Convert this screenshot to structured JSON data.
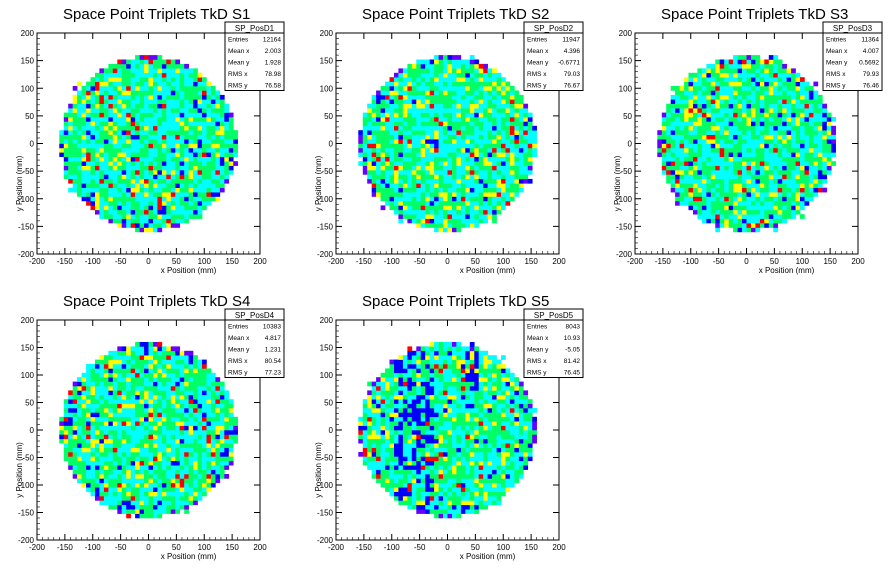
{
  "colors": {
    "palette": [
      "#6600ff",
      "#0000ff",
      "#00ffff",
      "#00ff66",
      "#ffff00",
      "#ff0000"
    ],
    "background": "#ffffff",
    "frame": "#000000"
  },
  "chart_data": [
    {
      "type": "heatmap",
      "title": "Space Point Triplets TkD S1",
      "xlabel": "x Position (mm)",
      "ylabel": "y Position (mm)",
      "xlim": [
        -200,
        200
      ],
      "ylim": [
        -200,
        200
      ],
      "xticks": [
        "-200",
        "-150",
        "-100",
        "-50",
        "0",
        "50",
        "100",
        "150",
        "200"
      ],
      "yticks": [
        "-200",
        "-150",
        "-100",
        "-50",
        "0",
        "50",
        "100",
        "150",
        "200"
      ],
      "disk_radius": 160,
      "stats": {
        "name": "SP_PosD1",
        "rows": [
          [
            "Entries",
            "12164"
          ],
          [
            "Mean x",
            "2.003"
          ],
          [
            "Mean y",
            "1.928"
          ],
          [
            "RMS x",
            "78.98"
          ],
          [
            "RMS y",
            "76.58"
          ]
        ]
      }
    },
    {
      "type": "heatmap",
      "title": "Space Point Triplets TkD S2",
      "xlabel": "x Position (mm)",
      "ylabel": "y Position (mm)",
      "xlim": [
        -200,
        200
      ],
      "ylim": [
        -200,
        200
      ],
      "xticks": [
        "-200",
        "-150",
        "-100",
        "-50",
        "0",
        "50",
        "100",
        "150",
        "200"
      ],
      "yticks": [
        "-200",
        "-150",
        "-100",
        "-50",
        "0",
        "50",
        "100",
        "150",
        "200"
      ],
      "disk_radius": 160,
      "stats": {
        "name": "SP_PosD2",
        "rows": [
          [
            "Entries",
            "11947"
          ],
          [
            "Mean x",
            "4.396"
          ],
          [
            "Mean y",
            "-0.6771"
          ],
          [
            "RMS x",
            "79.03"
          ],
          [
            "RMS y",
            "76.67"
          ]
        ]
      }
    },
    {
      "type": "heatmap",
      "title": "Space Point Triplets TkD S3",
      "xlabel": "x Position (mm)",
      "ylabel": "y Position (mm)",
      "xlim": [
        -200,
        200
      ],
      "ylim": [
        -200,
        200
      ],
      "xticks": [
        "-200",
        "-150",
        "-100",
        "-50",
        "0",
        "50",
        "100",
        "150",
        "200"
      ],
      "yticks": [
        "-200",
        "-150",
        "-100",
        "-50",
        "0",
        "50",
        "100",
        "150",
        "200"
      ],
      "disk_radius": 160,
      "stats": {
        "name": "SP_PosD3",
        "rows": [
          [
            "Entries",
            "11364"
          ],
          [
            "Mean x",
            "4.007"
          ],
          [
            "Mean y",
            "0.5692"
          ],
          [
            "RMS x",
            "79.93"
          ],
          [
            "RMS y",
            "76.46"
          ]
        ]
      }
    },
    {
      "type": "heatmap",
      "title": "Space Point Triplets TkD S4",
      "xlabel": "x Position (mm)",
      "ylabel": "y Position (mm)",
      "xlim": [
        -200,
        200
      ],
      "ylim": [
        -200,
        200
      ],
      "xticks": [
        "-200",
        "-150",
        "-100",
        "-50",
        "0",
        "50",
        "100",
        "150",
        "200"
      ],
      "yticks": [
        "-200",
        "-150",
        "-100",
        "-50",
        "0",
        "50",
        "100",
        "150",
        "200"
      ],
      "disk_radius": 160,
      "stats": {
        "name": "SP_PosD4",
        "rows": [
          [
            "Entries",
            "10383"
          ],
          [
            "Mean x",
            "4.817"
          ],
          [
            "Mean y",
            "1.231"
          ],
          [
            "RMS x",
            "80.54"
          ],
          [
            "RMS y",
            "77.23"
          ]
        ]
      }
    },
    {
      "type": "heatmap",
      "title": "Space Point Triplets TkD S5",
      "xlabel": "x Position (mm)",
      "ylabel": "y Position (mm)",
      "xlim": [
        -200,
        200
      ],
      "ylim": [
        -200,
        200
      ],
      "xticks": [
        "-200",
        "-150",
        "-100",
        "-50",
        "0",
        "50",
        "100",
        "150",
        "200"
      ],
      "yticks": [
        "-200",
        "-150",
        "-100",
        "-50",
        "0",
        "50",
        "100",
        "150",
        "200"
      ],
      "disk_radius": 160,
      "stats": {
        "name": "SP_PosD5",
        "rows": [
          [
            "Entries",
            "8043"
          ],
          [
            "Mean x",
            "10.93"
          ],
          [
            "Mean y",
            "-5.05"
          ],
          [
            "RMS x",
            "81.42"
          ],
          [
            "RMS y",
            "76.45"
          ]
        ]
      }
    }
  ]
}
